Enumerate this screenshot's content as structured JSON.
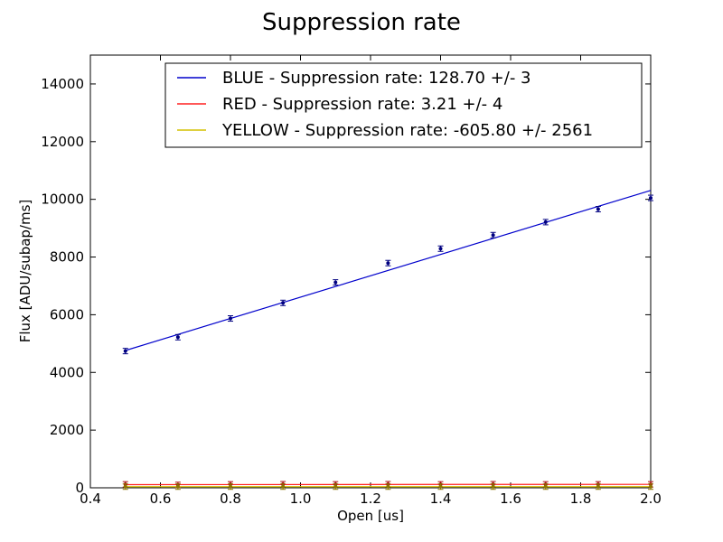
{
  "chart_data": {
    "type": "scatter",
    "title": "Suppression rate",
    "xlabel": "Open [us]",
    "ylabel": "Flux [ADU/subap/ms]",
    "xlim": [
      0.4,
      2.0
    ],
    "ylim": [
      0,
      15000
    ],
    "xticks": [
      "0.4",
      "0.6",
      "0.8",
      "1.0",
      "1.2",
      "1.4",
      "1.6",
      "1.8",
      "2.0"
    ],
    "yticks": [
      "0",
      "2000",
      "4000",
      "6000",
      "8000",
      "10000",
      "12000",
      "14000"
    ],
    "grid": false,
    "legend_position": "top-right",
    "x": [
      0.5,
      0.65,
      0.8,
      0.95,
      1.1,
      1.25,
      1.4,
      1.55,
      1.7,
      1.85,
      2.0
    ],
    "series": [
      {
        "name": "BLUE - Suppression rate: 128.70 +/- 3",
        "color": "#0000cc",
        "marker_color": "#000080",
        "values": [
          4740,
          5220,
          5870,
          6410,
          7120,
          7790,
          8290,
          8760,
          9210,
          9660,
          10050
        ],
        "fit": [
          4760,
          10310
        ]
      },
      {
        "name": "RED - Suppression rate: 3.21 +/- 4",
        "color": "#ff2020",
        "marker_color": "#aa1111",
        "values": [
          120,
          100,
          120,
          125,
          120,
          125,
          120,
          125,
          120,
          120,
          120
        ],
        "fit": [
          110,
          120
        ]
      },
      {
        "name": "YELLOW - Suppression rate: -605.80 +/- 2561",
        "color": "#d4c000",
        "marker_color": "#8b7500",
        "values": [
          40,
          40,
          40,
          40,
          40,
          40,
          40,
          40,
          40,
          40,
          40
        ],
        "fit": [
          40,
          40
        ]
      }
    ]
  }
}
